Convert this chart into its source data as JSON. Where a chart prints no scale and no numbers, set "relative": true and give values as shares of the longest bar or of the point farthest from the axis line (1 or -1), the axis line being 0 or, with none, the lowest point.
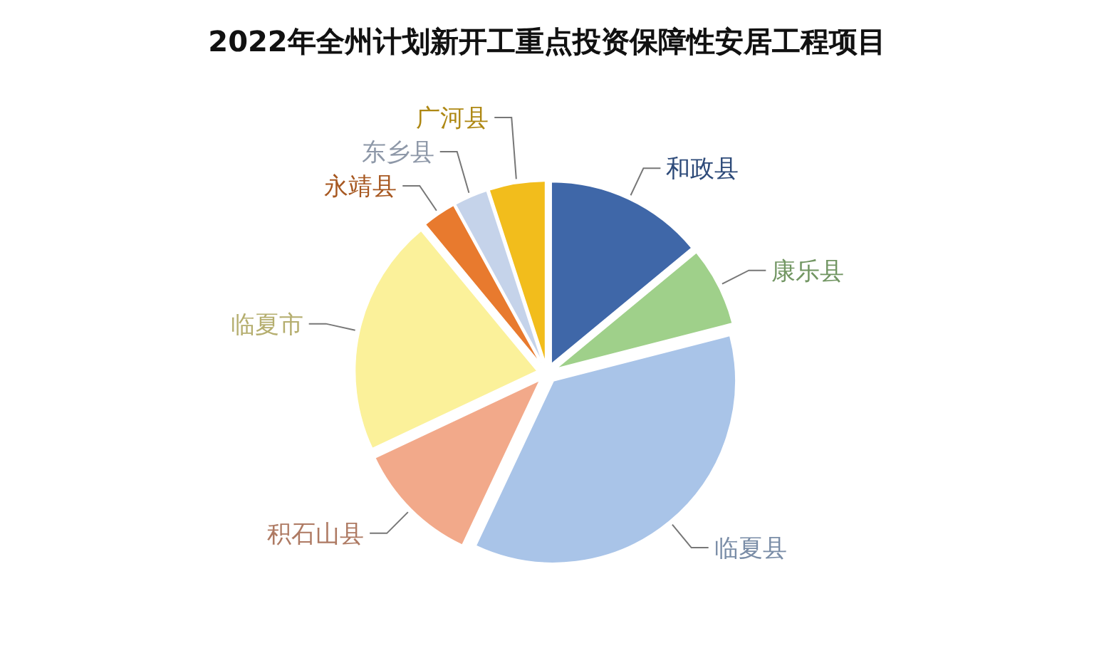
{
  "chart_data": {
    "type": "pie",
    "title": "2022年全州计划新开工重点投资保障性安居工程项目",
    "categories": [
      "和政县",
      "康乐县",
      "临夏县",
      "积石山县",
      "临夏市",
      "永靖县",
      "东乡县",
      "广河县"
    ],
    "values": [
      14,
      7,
      36,
      11,
      21,
      3,
      3,
      5
    ],
    "colors": [
      "#3f67a8",
      "#9fd08a",
      "#a9c4e8",
      "#f2a98a",
      "#fbf19a",
      "#e87a2e",
      "#c5d3ea",
      "#f2bd1c"
    ],
    "relative": true
  }
}
